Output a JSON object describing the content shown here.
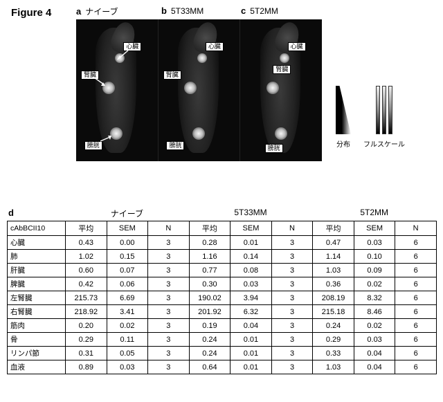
{
  "figure_label": "Figure 4",
  "panels": [
    {
      "letter": "a",
      "label": "ナイーブ"
    },
    {
      "letter": "b",
      "label": "5T33MM"
    },
    {
      "letter": "c",
      "label": "5T2MM"
    }
  ],
  "scan_tags": {
    "heart": "心臓",
    "kidney": "腎臓",
    "bladder": "膀胱"
  },
  "legend": {
    "distribution": "分布",
    "fullscale": "フルスケール"
  },
  "table": {
    "panel_letter": "d",
    "group_labels": [
      "ナイーブ",
      "5T33MM",
      "5T2MM"
    ],
    "row_header": "cAbBCII10",
    "sub_headers": [
      "平均",
      "SEM",
      "N"
    ],
    "rows": [
      {
        "label": "心臓",
        "g": [
          [
            0.43,
            0.0,
            3
          ],
          [
            0.28,
            0.01,
            3
          ],
          [
            0.47,
            0.03,
            6
          ]
        ]
      },
      {
        "label": "肺",
        "g": [
          [
            1.02,
            0.15,
            3
          ],
          [
            1.16,
            0.14,
            3
          ],
          [
            1.14,
            0.1,
            6
          ]
        ]
      },
      {
        "label": "肝臓",
        "g": [
          [
            0.6,
            0.07,
            3
          ],
          [
            0.77,
            0.08,
            3
          ],
          [
            1.03,
            0.09,
            6
          ]
        ]
      },
      {
        "label": "脾臓",
        "g": [
          [
            0.42,
            0.06,
            3
          ],
          [
            0.3,
            0.03,
            3
          ],
          [
            0.36,
            0.02,
            6
          ]
        ]
      },
      {
        "label": "左腎臓",
        "g": [
          [
            215.73,
            6.69,
            3
          ],
          [
            190.02,
            3.94,
            3
          ],
          [
            208.19,
            8.32,
            6
          ]
        ]
      },
      {
        "label": "右腎臓",
        "g": [
          [
            218.92,
            3.41,
            3
          ],
          [
            201.92,
            6.32,
            3
          ],
          [
            215.18,
            8.46,
            6
          ]
        ]
      },
      {
        "label": "筋肉",
        "g": [
          [
            0.2,
            0.02,
            3
          ],
          [
            0.19,
            0.04,
            3
          ],
          [
            0.24,
            0.02,
            6
          ]
        ]
      },
      {
        "label": "骨",
        "g": [
          [
            0.29,
            0.11,
            3
          ],
          [
            0.24,
            0.01,
            3
          ],
          [
            0.29,
            0.03,
            6
          ]
        ]
      },
      {
        "label": "リンパ節",
        "g": [
          [
            0.31,
            0.05,
            3
          ],
          [
            0.24,
            0.01,
            3
          ],
          [
            0.33,
            0.04,
            6
          ]
        ]
      },
      {
        "label": "血液",
        "g": [
          [
            0.89,
            0.03,
            3
          ],
          [
            0.64,
            0.01,
            3
          ],
          [
            1.03,
            0.04,
            6
          ]
        ]
      }
    ],
    "decimals": {
      "mean": 2,
      "sem": 2,
      "n": 0
    }
  },
  "colors": {
    "background": "#ffffff",
    "scan_bg": "#0a0a0a",
    "border": "#000000",
    "text": "#000000"
  }
}
